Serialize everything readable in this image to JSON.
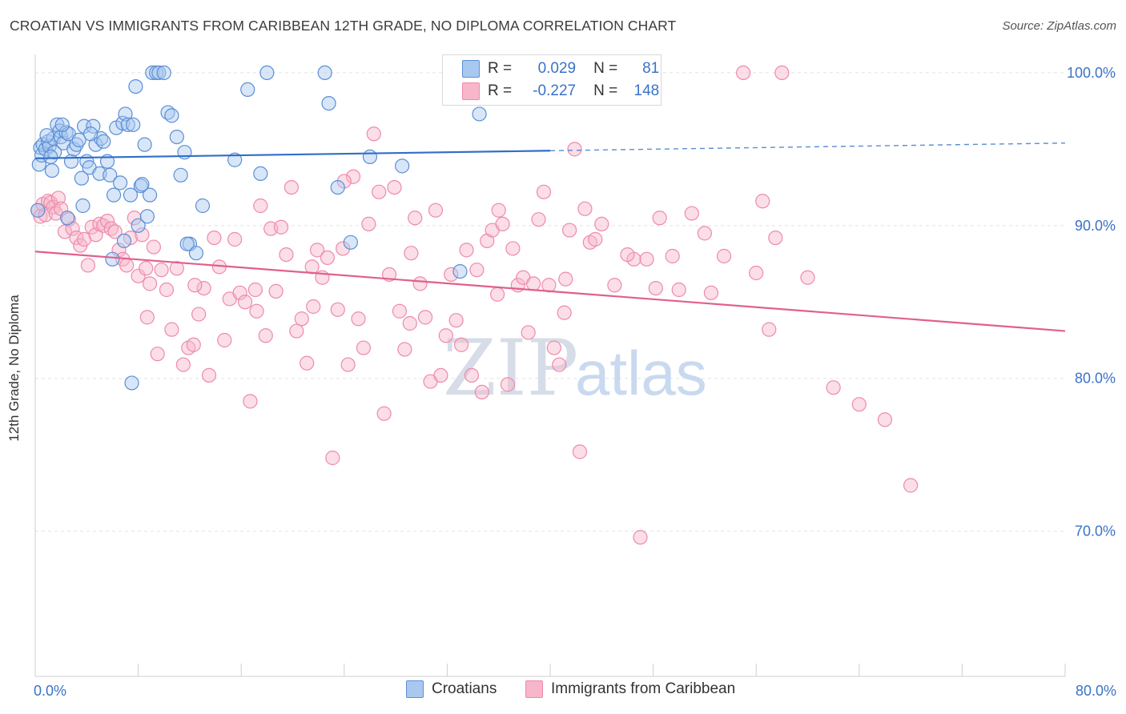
{
  "title": "CROATIAN VS IMMIGRANTS FROM CARIBBEAN 12TH GRADE, NO DIPLOMA CORRELATION CHART",
  "source": "Source: ZipAtlas.com",
  "watermark": {
    "zip": "ZIP",
    "atlas": "atlas"
  },
  "legend": {
    "rows": [
      {
        "r_key": "R =",
        "r_val": "0.029",
        "n_key": "N =",
        "n_val": "81",
        "color": "#a9c8f0"
      },
      {
        "r_key": "R =",
        "r_val": "-0.227",
        "n_key": "N =",
        "n_val": "148",
        "color": "#f7b6c9"
      }
    ]
  },
  "bottom_legend": [
    {
      "label": "Croatians",
      "color": "#a9c8f0"
    },
    {
      "label": "Immigrants from Caribbean",
      "color": "#f7b6c9"
    }
  ],
  "chart_data": {
    "type": "scatter",
    "title": "CROATIAN VS IMMIGRANTS FROM CARIBBEAN 12TH GRADE, NO DIPLOMA CORRELATION CHART",
    "ylabel": "12th Grade, No Diploma",
    "xlabel": "",
    "x_tick_labels": [
      "0.0%",
      "80.0%"
    ],
    "y_tick_labels": [
      "100.0%",
      "90.0%",
      "80.0%",
      "70.0%"
    ],
    "xlim": [
      0,
      80
    ],
    "ylim": [
      60.5,
      101.2
    ],
    "yticks": [
      100,
      90,
      80,
      70
    ],
    "grid": true,
    "legend_position": "top-center",
    "colors": {
      "croatians": "#5b8fd6",
      "caribbean": "#ee8aab",
      "trend_blue": "#2f6fc8",
      "trend_pink": "#e0608c"
    },
    "series": [
      {
        "name": "Croatians",
        "trend": {
          "x": [
            0,
            40
          ],
          "y": [
            94.4,
            94.9
          ],
          "dashed_to": [
            80,
            95.4
          ]
        },
        "points": [
          [
            0.3,
            94.0
          ],
          [
            0.4,
            95.1
          ],
          [
            0.5,
            94.6
          ],
          [
            0.6,
            95.3
          ],
          [
            0.8,
            95.0
          ],
          [
            1.0,
            95.5
          ],
          [
            1.1,
            95.2
          ],
          [
            1.3,
            93.6
          ],
          [
            1.4,
            95.7
          ],
          [
            1.5,
            94.8
          ],
          [
            1.7,
            96.6
          ],
          [
            1.9,
            96.2
          ],
          [
            2.0,
            95.8
          ],
          [
            2.2,
            95.4
          ],
          [
            2.4,
            96.1
          ],
          [
            2.6,
            96.0
          ],
          [
            2.8,
            94.2
          ],
          [
            3.0,
            95.0
          ],
          [
            3.2,
            95.3
          ],
          [
            3.4,
            95.6
          ],
          [
            3.6,
            93.1
          ],
          [
            3.8,
            96.5
          ],
          [
            4.0,
            94.2
          ],
          [
            4.2,
            93.8
          ],
          [
            4.5,
            96.5
          ],
          [
            4.7,
            95.3
          ],
          [
            5.0,
            93.4
          ],
          [
            5.1,
            95.7
          ],
          [
            5.3,
            95.5
          ],
          [
            5.6,
            94.2
          ],
          [
            5.8,
            93.3
          ],
          [
            6.1,
            92.0
          ],
          [
            6.3,
            96.4
          ],
          [
            6.6,
            92.8
          ],
          [
            6.8,
            96.7
          ],
          [
            7.0,
            97.3
          ],
          [
            7.2,
            96.6
          ],
          [
            7.4,
            92.0
          ],
          [
            7.6,
            96.6
          ],
          [
            7.8,
            99.1
          ],
          [
            8.0,
            90.0
          ],
          [
            8.2,
            92.6
          ],
          [
            8.5,
            95.3
          ],
          [
            8.7,
            90.6
          ],
          [
            8.9,
            92.0
          ],
          [
            9.1,
            100.0
          ],
          [
            9.4,
            100.0
          ],
          [
            9.6,
            100.0
          ],
          [
            10.0,
            100.0
          ],
          [
            10.3,
            97.4
          ],
          [
            10.6,
            97.2
          ],
          [
            11.0,
            95.8
          ],
          [
            11.3,
            93.3
          ],
          [
            11.6,
            94.8
          ],
          [
            12.0,
            88.8
          ],
          [
            12.5,
            88.2
          ],
          [
            15.5,
            94.3
          ],
          [
            16.5,
            98.9
          ],
          [
            17.5,
            93.4
          ],
          [
            18.0,
            100.0
          ],
          [
            22.5,
            100.0
          ],
          [
            22.8,
            98.0
          ],
          [
            23.5,
            92.5
          ],
          [
            24.5,
            88.9
          ],
          [
            26.0,
            94.5
          ],
          [
            28.5,
            93.9
          ],
          [
            33.0,
            87.0
          ],
          [
            34.5,
            97.3
          ],
          [
            6.0,
            87.8
          ],
          [
            7.5,
            79.7
          ],
          [
            3.7,
            91.3
          ],
          [
            2.5,
            90.5
          ],
          [
            1.2,
            94.5
          ],
          [
            0.2,
            91.0
          ],
          [
            0.9,
            95.9
          ],
          [
            2.1,
            96.6
          ],
          [
            4.3,
            96.0
          ],
          [
            6.9,
            89.0
          ],
          [
            8.3,
            92.7
          ],
          [
            13.0,
            91.3
          ],
          [
            11.8,
            88.8
          ]
        ]
      },
      {
        "name": "Immigrants from Caribbean",
        "trend": {
          "x": [
            0,
            80
          ],
          "y": [
            88.3,
            83.1
          ]
        },
        "points": [
          [
            0.2,
            91.0
          ],
          [
            0.4,
            90.6
          ],
          [
            0.6,
            91.4
          ],
          [
            0.8,
            90.7
          ],
          [
            1.0,
            91.6
          ],
          [
            1.2,
            91.5
          ],
          [
            1.4,
            91.2
          ],
          [
            1.6,
            90.8
          ],
          [
            1.8,
            91.8
          ],
          [
            2.0,
            91.1
          ],
          [
            2.3,
            89.6
          ],
          [
            2.6,
            90.4
          ],
          [
            2.9,
            89.8
          ],
          [
            3.2,
            89.2
          ],
          [
            3.5,
            88.7
          ],
          [
            3.8,
            89.1
          ],
          [
            4.1,
            87.4
          ],
          [
            4.4,
            89.9
          ],
          [
            4.7,
            89.4
          ],
          [
            5.0,
            90.1
          ],
          [
            5.3,
            90.0
          ],
          [
            5.6,
            90.3
          ],
          [
            5.9,
            89.8
          ],
          [
            6.2,
            89.6
          ],
          [
            6.5,
            88.4
          ],
          [
            6.8,
            87.8
          ],
          [
            7.1,
            87.4
          ],
          [
            7.4,
            89.2
          ],
          [
            7.7,
            90.5
          ],
          [
            8.0,
            86.7
          ],
          [
            8.3,
            89.4
          ],
          [
            8.6,
            87.2
          ],
          [
            8.9,
            86.2
          ],
          [
            9.2,
            88.6
          ],
          [
            9.5,
            81.6
          ],
          [
            9.8,
            87.1
          ],
          [
            10.2,
            85.8
          ],
          [
            10.6,
            83.2
          ],
          [
            11.0,
            87.2
          ],
          [
            11.5,
            80.9
          ],
          [
            11.9,
            82.0
          ],
          [
            12.3,
            82.2
          ],
          [
            12.7,
            84.2
          ],
          [
            13.1,
            85.9
          ],
          [
            13.5,
            80.2
          ],
          [
            13.9,
            89.2
          ],
          [
            14.3,
            87.3
          ],
          [
            14.7,
            82.5
          ],
          [
            15.1,
            85.2
          ],
          [
            15.5,
            89.1
          ],
          [
            15.9,
            85.6
          ],
          [
            16.3,
            85.0
          ],
          [
            16.7,
            78.5
          ],
          [
            17.1,
            85.8
          ],
          [
            17.5,
            91.3
          ],
          [
            17.9,
            82.8
          ],
          [
            18.3,
            89.8
          ],
          [
            18.7,
            85.7
          ],
          [
            19.1,
            89.9
          ],
          [
            19.5,
            88.1
          ],
          [
            19.9,
            92.5
          ],
          [
            20.3,
            83.1
          ],
          [
            20.7,
            83.9
          ],
          [
            21.1,
            81.0
          ],
          [
            21.5,
            87.3
          ],
          [
            21.9,
            88.4
          ],
          [
            22.3,
            86.6
          ],
          [
            22.7,
            87.9
          ],
          [
            23.1,
            74.8
          ],
          [
            23.5,
            84.5
          ],
          [
            23.9,
            88.5
          ],
          [
            24.3,
            80.9
          ],
          [
            24.7,
            93.2
          ],
          [
            25.1,
            83.9
          ],
          [
            25.5,
            82.0
          ],
          [
            25.9,
            90.1
          ],
          [
            26.3,
            96.0
          ],
          [
            26.7,
            92.2
          ],
          [
            27.1,
            77.7
          ],
          [
            27.5,
            86.8
          ],
          [
            27.9,
            92.5
          ],
          [
            28.3,
            84.4
          ],
          [
            28.7,
            81.9
          ],
          [
            29.1,
            83.6
          ],
          [
            29.5,
            90.5
          ],
          [
            29.9,
            86.2
          ],
          [
            30.3,
            84.0
          ],
          [
            30.7,
            79.8
          ],
          [
            31.1,
            91.0
          ],
          [
            31.5,
            80.2
          ],
          [
            31.9,
            82.8
          ],
          [
            32.3,
            86.8
          ],
          [
            32.7,
            83.8
          ],
          [
            33.1,
            82.2
          ],
          [
            33.5,
            88.4
          ],
          [
            33.9,
            80.2
          ],
          [
            34.3,
            87.1
          ],
          [
            34.7,
            79.1
          ],
          [
            35.1,
            89.0
          ],
          [
            35.5,
            89.7
          ],
          [
            35.9,
            85.5
          ],
          [
            36.3,
            90.1
          ],
          [
            36.7,
            79.6
          ],
          [
            37.1,
            88.5
          ],
          [
            37.5,
            86.1
          ],
          [
            37.9,
            86.6
          ],
          [
            38.3,
            83.0
          ],
          [
            38.7,
            86.2
          ],
          [
            39.1,
            90.4
          ],
          [
            39.5,
            92.2
          ],
          [
            39.9,
            86.1
          ],
          [
            40.3,
            82.0
          ],
          [
            40.7,
            80.9
          ],
          [
            41.1,
            84.3
          ],
          [
            41.5,
            89.7
          ],
          [
            41.9,
            95.0
          ],
          [
            42.3,
            75.2
          ],
          [
            42.7,
            91.1
          ],
          [
            43.1,
            88.9
          ],
          [
            43.5,
            89.1
          ],
          [
            44.0,
            90.1
          ],
          [
            45.0,
            86.1
          ],
          [
            46.5,
            87.8
          ],
          [
            47.0,
            69.6
          ],
          [
            47.5,
            87.8
          ],
          [
            48.5,
            90.5
          ],
          [
            49.5,
            88.0
          ],
          [
            50.0,
            85.8
          ],
          [
            51.0,
            90.8
          ],
          [
            52.0,
            89.5
          ],
          [
            52.5,
            85.6
          ],
          [
            53.5,
            88.0
          ],
          [
            55.0,
            100.0
          ],
          [
            56.0,
            86.9
          ],
          [
            56.5,
            91.6
          ],
          [
            57.0,
            83.2
          ],
          [
            57.5,
            89.2
          ],
          [
            58.0,
            100.0
          ],
          [
            60.0,
            86.6
          ],
          [
            62.0,
            79.4
          ],
          [
            64.0,
            78.3
          ],
          [
            66.0,
            77.3
          ],
          [
            68.0,
            73.0
          ],
          [
            36.0,
            91.0
          ],
          [
            24.0,
            92.9
          ],
          [
            29.2,
            88.2
          ],
          [
            46.0,
            88.1
          ],
          [
            48.2,
            85.9
          ],
          [
            41.2,
            86.5
          ],
          [
            21.6,
            84.7
          ],
          [
            17.2,
            84.4
          ],
          [
            12.4,
            86.1
          ],
          [
            8.7,
            84.0
          ]
        ]
      }
    ]
  }
}
